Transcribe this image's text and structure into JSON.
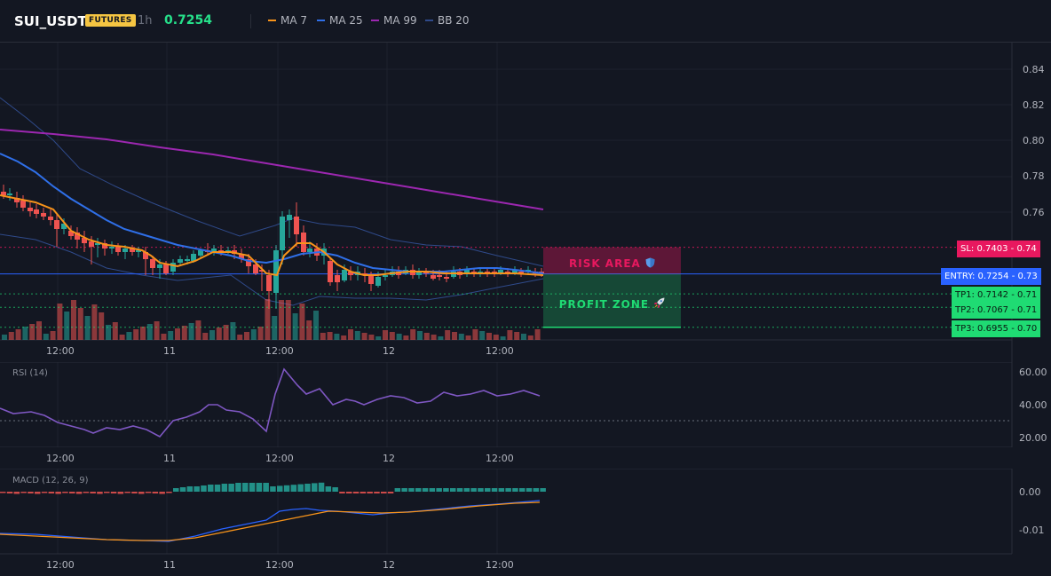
{
  "header": {
    "symbol": "SUI_USDT",
    "market_badge": "FUTURES",
    "timeframe": "1h",
    "last_price": "0.7254",
    "indicators": [
      {
        "label": "MA 7",
        "color": "#f7931a"
      },
      {
        "label": "MA 25",
        "color": "#2f6fe8"
      },
      {
        "label": "MA 99",
        "color": "#9c27b0"
      },
      {
        "label": "BB 20",
        "color": "#2f4a8a"
      }
    ]
  },
  "price_axis": [
    "0.84",
    "0.82",
    "0.80",
    "0.78",
    "0.76",
    "0.74",
    "0.73",
    "0.71",
    "0.71",
    "0.70"
  ],
  "time_axis": [
    "12:00",
    "11",
    "12:00",
    "12",
    "12:00"
  ],
  "levels": {
    "sl": {
      "label": "SL: 0.7403",
      "axis": "0.74",
      "value": 0.7403,
      "color": "#e8185f"
    },
    "entry": {
      "label": "ENTRY: 0.7254",
      "axis": "0.73",
      "value": 0.7254,
      "color": "#2962ff"
    },
    "tp1": {
      "label": "TP1: 0.7142",
      "axis": "0.71",
      "value": 0.7142,
      "color": "#1fdb73"
    },
    "tp2": {
      "label": "TP2: 0.7067",
      "axis": "0.71",
      "value": 0.7067,
      "color": "#1fdb73"
    },
    "tp3": {
      "label": "TP3: 0.6955",
      "axis": "0.70",
      "value": 0.6955,
      "color": "#1fdb73"
    }
  },
  "zones": {
    "risk_label": "RISK AREA",
    "risk_icon": "shield-icon",
    "profit_label": "PROFIT ZONE",
    "profit_icon": "rocket-icon"
  },
  "rsi": {
    "label": "RSI (14)",
    "axis": [
      "60.00",
      "40.00",
      "20.00"
    ],
    "line_color": "#7e57c2"
  },
  "macd": {
    "label": "MACD (12, 26, 9)",
    "axis": [
      "0.00",
      "-0.01"
    ],
    "macd_color": "#2962ff",
    "signal_color": "#f7931a"
  },
  "colors": {
    "up": "#26a69a",
    "down": "#ef5350",
    "background": "#131722"
  }
}
